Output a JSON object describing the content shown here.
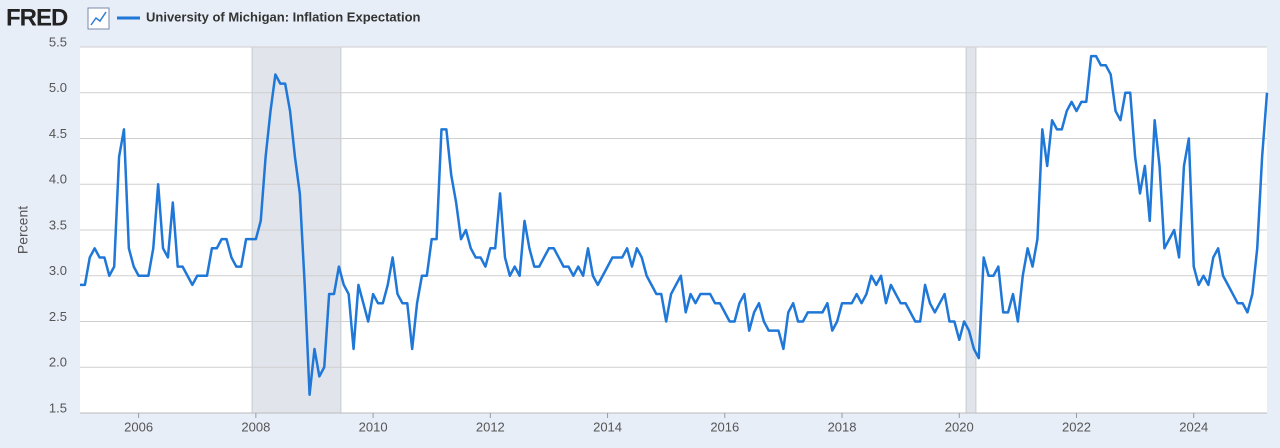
{
  "header": {
    "logo": "FRED"
  },
  "chart_data": {
    "type": "line",
    "y_label": "Percent",
    "categories": [
      null,
      null,
      null,
      null,
      null,
      null,
      null,
      null,
      null,
      null,
      null,
      null,
      "2006",
      null,
      null,
      null,
      null,
      null,
      null,
      null,
      null,
      null,
      null,
      null,
      null,
      null,
      null,
      null,
      null,
      null,
      null,
      null,
      null,
      null,
      null,
      null,
      "2008",
      null,
      null,
      null,
      null,
      null,
      null,
      null,
      null,
      null,
      null,
      null,
      null,
      null,
      null,
      null,
      null,
      null,
      null,
      null,
      null,
      null,
      null,
      null,
      "2010",
      null,
      null,
      null,
      null,
      null,
      null,
      null,
      null,
      null,
      null,
      null,
      null,
      null,
      null,
      null,
      null,
      null,
      null,
      null,
      null,
      null,
      null,
      null,
      "2012",
      null,
      null,
      null,
      null,
      null,
      null,
      null,
      null,
      null,
      null,
      null,
      null,
      null,
      null,
      null,
      null,
      null,
      null,
      null,
      null,
      null,
      null,
      null,
      "2014",
      null,
      null,
      null,
      null,
      null,
      null,
      null,
      null,
      null,
      null,
      null,
      null,
      null,
      null,
      null,
      null,
      null,
      null,
      null,
      null,
      null,
      null,
      null,
      "2016",
      null,
      null,
      null,
      null,
      null,
      null,
      null,
      null,
      null,
      null,
      null,
      null,
      null,
      null,
      null,
      null,
      null,
      null,
      null,
      null,
      null,
      null,
      null,
      "2018",
      null,
      null,
      null,
      null,
      null,
      null,
      null,
      null,
      null,
      null,
      null,
      null,
      null,
      null,
      null,
      null,
      null,
      null,
      null,
      null,
      null,
      null,
      null,
      "2020",
      null,
      null,
      null,
      null,
      null,
      null,
      null,
      null,
      null,
      null,
      null,
      null,
      null,
      null,
      null,
      null,
      null,
      null,
      null,
      null,
      null,
      null,
      null,
      "2022",
      null,
      null,
      null,
      null,
      null,
      null,
      null,
      null,
      null,
      null,
      null,
      null,
      null,
      null,
      null,
      null,
      null,
      null,
      null,
      null,
      null,
      null,
      null,
      "2024",
      null,
      null,
      null,
      null,
      null,
      null,
      null,
      null,
      null,
      null,
      null,
      null,
      null,
      null,
      null
    ],
    "series": [
      {
        "name": "University of Michigan: Inflation Expectation",
        "color": "#1f77d8",
        "values": [
          2.9,
          2.9,
          3.2,
          3.3,
          3.2,
          3.2,
          3.0,
          3.1,
          4.3,
          4.6,
          3.3,
          3.1,
          3.0,
          3.0,
          3.0,
          3.3,
          4.0,
          3.3,
          3.2,
          3.8,
          3.1,
          3.1,
          3.0,
          2.9,
          3.0,
          3.0,
          3.0,
          3.3,
          3.3,
          3.4,
          3.4,
          3.2,
          3.1,
          3.1,
          3.4,
          3.4,
          3.4,
          3.6,
          4.3,
          4.8,
          5.2,
          5.1,
          5.1,
          4.8,
          4.3,
          3.9,
          2.9,
          1.7,
          2.2,
          1.9,
          2.0,
          2.8,
          2.8,
          3.1,
          2.9,
          2.8,
          2.2,
          2.9,
          2.7,
          2.5,
          2.8,
          2.7,
          2.7,
          2.9,
          3.2,
          2.8,
          2.7,
          2.7,
          2.2,
          2.7,
          3.0,
          3.0,
          3.4,
          3.4,
          4.6,
          4.6,
          4.1,
          3.8,
          3.4,
          3.5,
          3.3,
          3.2,
          3.2,
          3.1,
          3.3,
          3.3,
          3.9,
          3.2,
          3.0,
          3.1,
          3.0,
          3.6,
          3.3,
          3.1,
          3.1,
          3.2,
          3.3,
          3.3,
          3.2,
          3.1,
          3.1,
          3.0,
          3.1,
          3.0,
          3.3,
          3.0,
          2.9,
          3.0,
          3.1,
          3.2,
          3.2,
          3.2,
          3.3,
          3.1,
          3.3,
          3.2,
          3.0,
          2.9,
          2.8,
          2.8,
          2.5,
          2.8,
          2.9,
          3.0,
          2.6,
          2.8,
          2.7,
          2.8,
          2.8,
          2.8,
          2.7,
          2.7,
          2.6,
          2.5,
          2.5,
          2.7,
          2.8,
          2.4,
          2.6,
          2.7,
          2.5,
          2.4,
          2.4,
          2.4,
          2.2,
          2.6,
          2.7,
          2.5,
          2.5,
          2.6,
          2.6,
          2.6,
          2.6,
          2.7,
          2.4,
          2.5,
          2.7,
          2.7,
          2.7,
          2.8,
          2.7,
          2.8,
          3.0,
          2.9,
          3.0,
          2.7,
          2.9,
          2.8,
          2.7,
          2.7,
          2.6,
          2.5,
          2.5,
          2.9,
          2.7,
          2.6,
          2.7,
          2.8,
          2.5,
          2.5,
          2.3,
          2.5,
          2.4,
          2.2,
          2.1,
          3.2,
          3.0,
          3.0,
          3.1,
          2.6,
          2.6,
          2.8,
          2.5,
          3.0,
          3.3,
          3.1,
          3.4,
          4.6,
          4.2,
          4.7,
          4.6,
          4.6,
          4.8,
          4.9,
          4.8,
          4.9,
          4.9,
          5.4,
          5.4,
          5.3,
          5.3,
          5.2,
          4.8,
          4.7,
          5.0,
          5.0,
          4.3,
          3.9,
          4.2,
          3.6,
          4.7,
          4.2,
          3.3,
          3.4,
          3.5,
          3.2,
          4.2,
          4.5,
          3.1,
          2.9,
          3.0,
          2.9,
          3.2,
          3.3,
          3.0,
          2.9,
          2.8,
          2.7,
          2.7,
          2.6,
          2.8,
          3.3,
          4.3,
          5.0
        ]
      }
    ],
    "ylim": [
      1.5,
      5.5
    ],
    "yticks": [
      1.5,
      {
        "value": 2,
        "label": "2.0"
      },
      2.5,
      {
        "value": 3,
        "label": "3.0"
      },
      3.5,
      {
        "value": 4,
        "label": "4.0"
      },
      4.5,
      {
        "value": 5,
        "label": "5.0"
      },
      5.5
    ],
    "grid": true
  }
}
